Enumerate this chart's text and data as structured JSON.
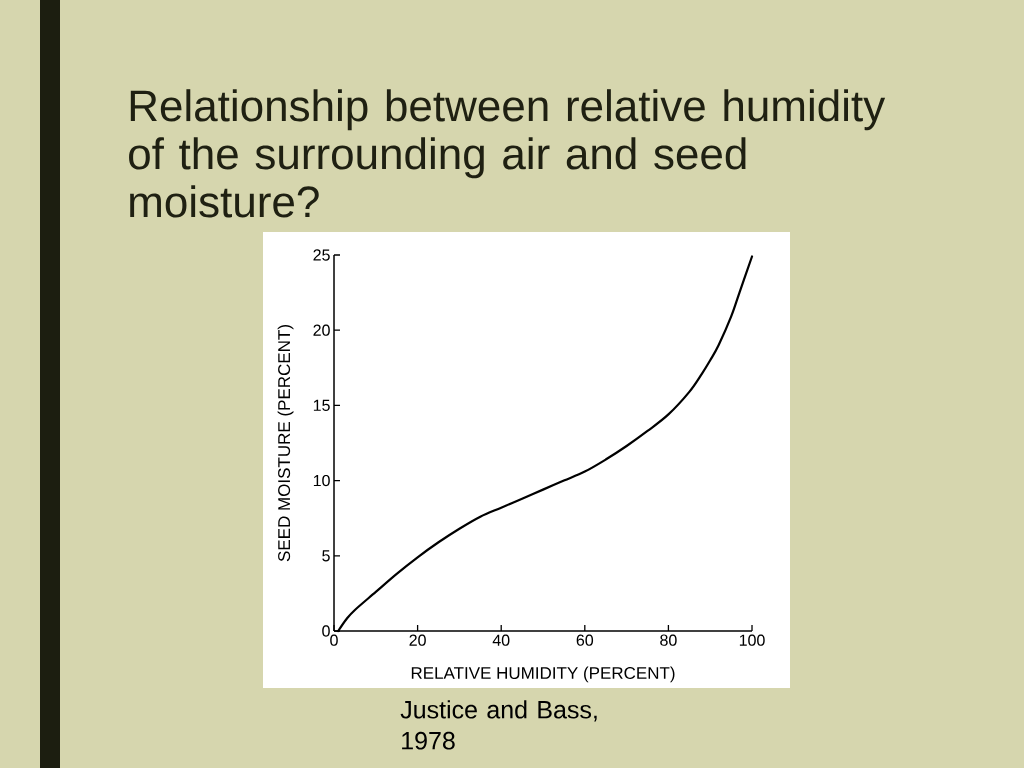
{
  "chart_data": {
    "type": "line",
    "title": "Relationship between relative humidity of the surrounding air and seed moisture?",
    "xlabel": "RELATIVE HUMIDITY (PERCENT)",
    "ylabel": "SEED MOISTURE (PERCENT)",
    "annotations": [
      "Justice and Bass, 1978"
    ],
    "x": [
      1,
      3,
      5,
      10,
      15,
      20,
      25,
      30,
      35,
      40,
      45,
      50,
      55,
      60,
      65,
      70,
      75,
      80,
      85,
      88,
      90,
      92,
      95,
      97,
      100
    ],
    "series": [
      {
        "color": "#000000",
        "values": [
          0,
          0.8,
          1.4,
          2.6,
          3.8,
          4.9,
          5.9,
          6.8,
          7.6,
          8.2,
          8.8,
          9.4,
          10.0,
          10.6,
          11.4,
          12.3,
          13.3,
          14.4,
          15.9,
          17.1,
          18.0,
          19.0,
          20.9,
          22.5,
          24.9
        ]
      }
    ],
    "xlim": [
      0,
      100
    ],
    "ylim": [
      0,
      25
    ],
    "xticks": [
      0,
      20,
      40,
      60,
      80,
      100
    ],
    "yticks": [
      0,
      5,
      10,
      15,
      20,
      25
    ],
    "marker": "none",
    "line_style": "solid"
  }
}
